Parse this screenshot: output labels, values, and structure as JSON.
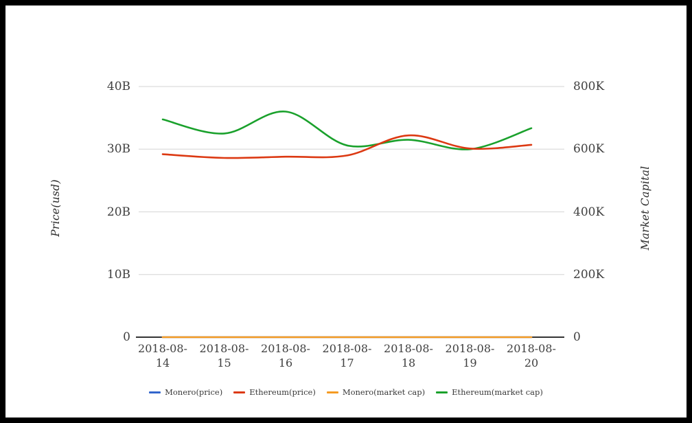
{
  "colors": {
    "grid": "#dcdcdc",
    "axis_line": "#333333",
    "tick_text": "#3f3f3f",
    "background": "#ffffff",
    "frame_border": "#000000"
  },
  "chart_data": {
    "type": "line",
    "title": "",
    "smooth": true,
    "grid": true,
    "legend_position": "bottom",
    "categories": [
      "2018-08-14",
      "2018-08-15",
      "2018-08-16",
      "2018-08-17",
      "2018-08-18",
      "2018-08-19",
      "2018-08-20"
    ],
    "left_axis": {
      "title": "Price(usd)",
      "ticks": [
        "0",
        "10B",
        "20B",
        "30B",
        "40B"
      ],
      "tick_values": [
        0,
        10,
        20,
        30,
        40
      ],
      "max": 40,
      "unit": "billions (B)",
      "ylim": [
        0,
        40
      ]
    },
    "right_axis": {
      "title": "Market Capital",
      "ticks": [
        "0",
        "200K",
        "400K",
        "600K",
        "800K"
      ],
      "tick_values": [
        0,
        200,
        400,
        600,
        800
      ],
      "max": 800,
      "unit": "thousands (K)",
      "ylim": [
        0,
        800
      ]
    },
    "series": [
      {
        "name": "Monero(price)",
        "color": "#3366cc",
        "axis": "left",
        "values": [
          0,
          0,
          0,
          0,
          0,
          0,
          0
        ]
      },
      {
        "name": "Ethereum(price)",
        "color": "#dc3912",
        "axis": "left",
        "values": [
          29.2,
          28.6,
          28.8,
          29.0,
          32.2,
          30.1,
          30.7
        ]
      },
      {
        "name": "Monero(market cap)",
        "color": "#f59b23",
        "axis": "right",
        "values": [
          0,
          0,
          0,
          0,
          0,
          0,
          0
        ]
      },
      {
        "name": "Ethereum(market cap)",
        "color": "#1aa12c",
        "axis": "right",
        "values": [
          695,
          650,
          720,
          612,
          630,
          600,
          667
        ]
      }
    ]
  }
}
